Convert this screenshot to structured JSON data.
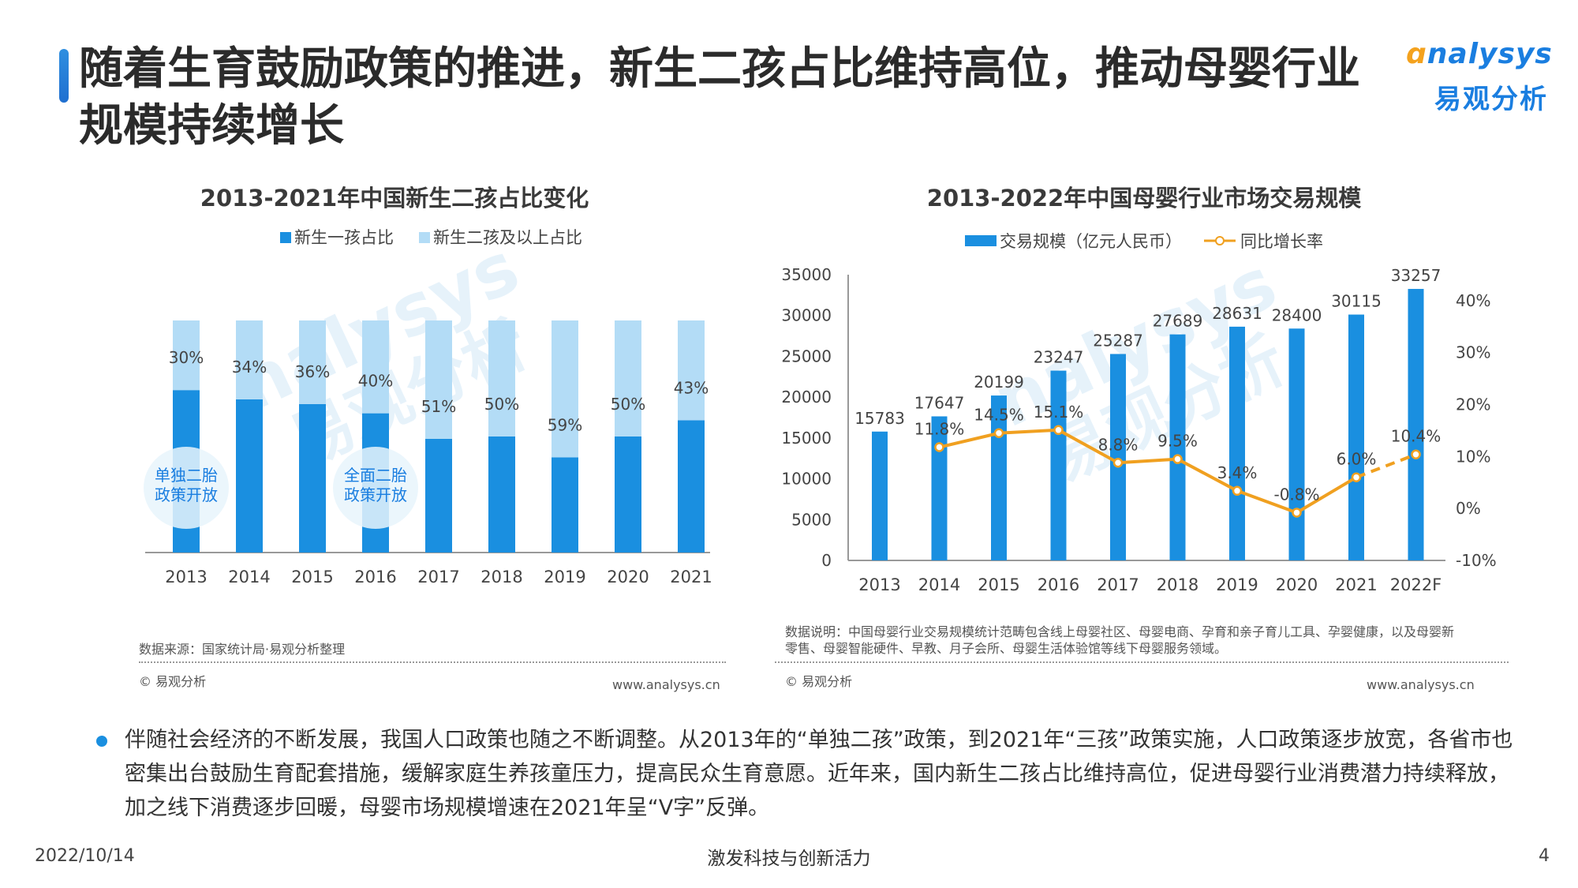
{
  "header": {
    "title": "随着生育鼓励政策的推进，新生二孩占比维持高位，推动母婴行业规模持续增长",
    "logo_en": "nalysys",
    "logo_cn": "易观分析"
  },
  "watermark": {
    "en": "nalysys",
    "cn": "易观分析"
  },
  "chart_data": [
    {
      "type": "bar",
      "stacked": true,
      "title": "2013-2021年中国新生二孩占比变化",
      "categories": [
        "2013",
        "2014",
        "2015",
        "2016",
        "2017",
        "2018",
        "2019",
        "2020",
        "2021"
      ],
      "series": [
        {
          "name": "新生一孩占比",
          "color": "#1a8fe0",
          "values": [
            70,
            66,
            64,
            60,
            49,
            50,
            41,
            50,
            57
          ]
        },
        {
          "name": "新生二孩及以上占比",
          "color": "#b3dcf6",
          "values": [
            30,
            34,
            36,
            40,
            51,
            50,
            59,
            50,
            43
          ]
        }
      ],
      "data_labels": [
        "30%",
        "34%",
        "36%",
        "40%",
        "51%",
        "50%",
        "59%",
        "50%",
        "43%"
      ],
      "annotations": [
        {
          "category": "2013",
          "text": [
            "单独二胎",
            "政策开放"
          ]
        },
        {
          "category": "2016",
          "text": [
            "全面二胎",
            "政策开放"
          ]
        }
      ],
      "legend": "top-center",
      "ylim": [
        0,
        100
      ],
      "grid": false,
      "source": "数据来源：国家统计局·易观分析整理",
      "copyright": "© 易观分析",
      "website": "www.analysys.cn"
    },
    {
      "type": "bar",
      "title": "2013-2022年中国母婴行业市场交易规模",
      "categories": [
        "2013",
        "2014",
        "2015",
        "2016",
        "2017",
        "2018",
        "2019",
        "2020",
        "2021",
        "2022F"
      ],
      "series": [
        {
          "name": "交易规模（亿元人民币）",
          "type": "bar",
          "color": "#1a8fe0",
          "axis": "left",
          "values": [
            15783,
            17647,
            20199,
            23247,
            25287,
            27689,
            28631,
            28400,
            30115,
            33257
          ]
        },
        {
          "name": "同比增长率",
          "type": "line",
          "color": "#f0a020",
          "axis": "right",
          "values": [
            null,
            11.8,
            14.5,
            15.1,
            8.8,
            9.5,
            3.4,
            -0.8,
            6.0,
            10.4
          ],
          "labels": [
            "",
            "11.8%",
            "14.5%",
            "15.1%",
            "8.8%",
            "9.5%",
            "3.4%",
            "-0.8%",
            "6.0%",
            "10.4%"
          ],
          "dashed_last_segment": true
        }
      ],
      "ylim_left": [
        0,
        35000
      ],
      "yticks_left": [
        "0",
        "5000",
        "10000",
        "15000",
        "20000",
        "25000",
        "30000",
        "35000"
      ],
      "ylim_right": [
        -10,
        45
      ],
      "yticks_right": [
        "-10%",
        "0%",
        "10%",
        "20%",
        "30%",
        "40%"
      ],
      "legend": "top-center",
      "grid": false,
      "note": [
        "数据说明：中国母婴行业交易规模统计范畴包含线上母婴社区、母婴电商、孕育和亲子育儿工具、孕婴健康，以及母婴新",
        "零售、母婴智能硬件、早教、月子会所、母婴生活体验馆等线下母婴服务领域。"
      ],
      "copyright": "© 易观分析",
      "website": "www.analysys.cn"
    }
  ],
  "summary": "伴随社会经济的不断发展，我国人口政策也随之不断调整。从2013年的“单独二孩”政策，到2021年“三孩”政策实施，人口政策逐步放宽，各省市也密集出台鼓励生育配套措施，缓解家庭生养孩童压力，提高民众生育意愿。近年来，国内新生二孩占比维持高位，促进母婴行业消费潜力持续释放，加之线下消费逐步回暖，母婴市场规模增速在2021年呈“V字”反弹。",
  "footer": {
    "date": "2022/10/14",
    "slogan": "激发科技与创新活力",
    "page": "4"
  }
}
